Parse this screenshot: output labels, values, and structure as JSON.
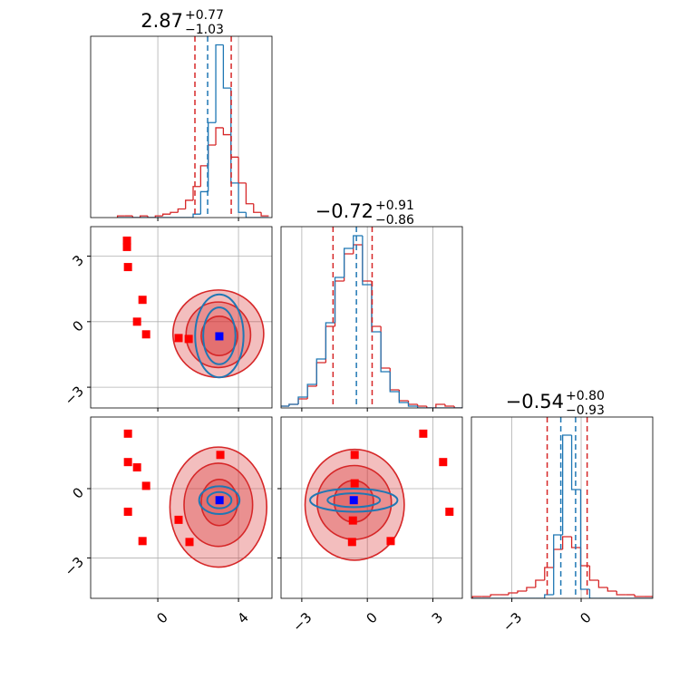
{
  "chart_data": {
    "type": "corner",
    "colors": {
      "red": "#d62728",
      "blue": "#1f77b4",
      "red_marker": "#ff0000",
      "blue_marker": "#0000ff"
    },
    "params": [
      {
        "title": "2.87",
        "plus": "+0.77",
        "minus": "−1.03",
        "lim": [
          -3.33,
          5.66
        ],
        "ticks": [
          0,
          4
        ],
        "quantiles": {
          "red": [
            1.84,
            3.64
          ],
          "blue": [
            2.47
          ]
        },
        "hist_ylim": [
          0,
          1.05
        ],
        "hist": {
          "bins": [
            -2,
            -1.625,
            -1.25,
            -0.875,
            -0.5,
            -0.125,
            0.25,
            0.625,
            1,
            1.375,
            1.75,
            2.125,
            2.5,
            2.875,
            3.25,
            3.625,
            4,
            4.375,
            4.75,
            5.125,
            5.5
          ],
          "red": [
            0.01,
            0.01,
            0,
            0.01,
            0,
            0.01,
            0.02,
            0.03,
            0.05,
            0.1,
            0.18,
            0.3,
            0.42,
            0.52,
            0.48,
            0.35,
            0.2,
            0.08,
            0.03,
            0.01
          ],
          "blue": [
            0,
            0,
            0,
            0,
            0,
            0,
            0,
            0,
            0,
            0,
            0.02,
            0.15,
            0.55,
            1.0,
            0.75,
            0.2,
            0.03,
            0,
            0,
            0
          ]
        },
        "pairs": []
      },
      {
        "title": "−0.72",
        "plus": "+0.91",
        "minus": "−0.86",
        "lim": [
          -3.95,
          4.35
        ],
        "ticks": [
          {
            "value": -3,
            "label": "−3"
          },
          0,
          3
        ],
        "quantiles": {
          "red": [
            -1.57,
            0.22
          ],
          "blue": [
            -0.5
          ]
        },
        "hist_ylim": [
          0,
          1.0
        ],
        "hist": {
          "bins": [
            -4,
            -3.58,
            -3.16,
            -2.74,
            -2.32,
            -1.9,
            -1.48,
            -1.06,
            -0.64,
            -0.22,
            0.2,
            0.62,
            1.04,
            1.46,
            1.88,
            2.3,
            2.72,
            3.14,
            3.56,
            3.98,
            4.4
          ],
          "red": [
            0.01,
            0.02,
            0.05,
            0.12,
            0.25,
            0.45,
            0.7,
            0.85,
            0.9,
            0.7,
            0.45,
            0.22,
            0.1,
            0.04,
            0.02,
            0.01,
            0,
            0.02,
            0.01,
            0
          ],
          "blue": [
            0.01,
            0.02,
            0.06,
            0.13,
            0.27,
            0.47,
            0.72,
            0.88,
            0.95,
            0.68,
            0.42,
            0.2,
            0.09,
            0.03,
            0.01,
            0,
            0,
            0,
            0,
            0
          ]
        },
        "pairs": [
          {
            "red_points": {
              "x": [
                -1.53,
                -1.53,
                -1.48,
                -0.76,
                -1.03,
                -0.58,
                1.03,
                1.53
              ],
              "y": [
                3.71,
                3.42,
                2.5,
                1.0,
                0,
                -0.58,
                -0.75,
                -0.79
              ]
            },
            "blue_point": {
              "x": 3.05,
              "y": -0.67
            },
            "red_contours": [
              {
                "cx": 3.0,
                "cy": -0.55,
                "rx": 2.25,
                "ry": 2.0
              },
              {
                "cx": 3.0,
                "cy": -0.6,
                "rx": 1.6,
                "ry": 1.5
              },
              {
                "cx": 3.05,
                "cy": -0.65,
                "rx": 0.9,
                "ry": 0.9
              }
            ],
            "blue_contours": [
              {
                "cx": 3.05,
                "cy": -0.65,
                "rx": 1.2,
                "ry": 1.9
              },
              {
                "cx": 3.05,
                "cy": -0.65,
                "rx": 0.8,
                "ry": 1.3
              }
            ]
          }
        ]
      },
      {
        "title": "−0.54",
        "plus": "+0.80",
        "minus": "−0.93",
        "lim": [
          -4.75,
          3.1
        ],
        "ticks": [
          {
            "value": -3,
            "label": "−3"
          },
          0
        ],
        "quantiles": {
          "red": [
            -1.47,
            0.26
          ],
          "blue": [
            -0.88,
            -0.24
          ]
        },
        "hist_ylim": [
          0,
          1.0
        ],
        "hist": {
          "bins": [
            -4.7,
            -4.31,
            -3.92,
            -3.53,
            -3.14,
            -2.75,
            -2.36,
            -1.97,
            -1.58,
            -1.19,
            -0.8,
            -0.41,
            -0.02,
            0.37,
            0.76,
            1.15,
            1.54,
            1.93,
            2.32,
            2.71,
            3.1
          ],
          "red": [
            0.01,
            0.01,
            0.02,
            0.02,
            0.03,
            0.04,
            0.06,
            0.1,
            0.17,
            0.27,
            0.34,
            0.28,
            0.18,
            0.1,
            0.06,
            0.04,
            0.02,
            0.02,
            0.01,
            0.01
          ],
          "blue": [
            0,
            0,
            0,
            0,
            0,
            0,
            0,
            0,
            0.02,
            0.35,
            0.9,
            0.6,
            0.05,
            0,
            0,
            0,
            0,
            0,
            0,
            0
          ]
        },
        "pairs": [
          {
            "red_points": {
              "x": [
                -1.48,
                -1.48,
                -1.03,
                -0.58,
                -1.48,
                -0.76,
                1.03,
                1.57,
                3.1
              ],
              "y": [
                2.38,
                1.15,
                0.92,
                0.12,
                -1.0,
                -2.27,
                -1.35,
                -2.31,
                1.46
              ]
            },
            "blue_point": {
              "x": 3.06,
              "y": -0.5
            },
            "red_contours": [
              {
                "cx": 3.0,
                "cy": -0.8,
                "rx": 2.4,
                "ry": 2.6
              },
              {
                "cx": 3.0,
                "cy": -0.7,
                "rx": 1.7,
                "ry": 1.8
              },
              {
                "cx": 3.05,
                "cy": -0.6,
                "rx": 0.9,
                "ry": 1.0
              }
            ],
            "blue_contours": [
              {
                "cx": 3.05,
                "cy": -0.5,
                "rx": 1.0,
                "ry": 0.6
              },
              {
                "cx": 3.05,
                "cy": -0.5,
                "rx": 0.6,
                "ry": 0.35
              }
            ]
          },
          {
            "red_points": {
              "x": [
                -0.58,
                -0.58,
                -0.66,
                -0.7,
                1.07,
                2.56,
                3.47,
                3.76
              ],
              "y": [
                1.46,
                0.23,
                -1.38,
                -2.31,
                -2.27,
                2.38,
                1.15,
                -1.0
              ]
            },
            "blue_point": {
              "x": -0.62,
              "y": -0.5
            },
            "red_contours": [
              {
                "cx": -0.58,
                "cy": -0.7,
                "rx": 2.27,
                "ry": 2.4
              },
              {
                "cx": -0.6,
                "cy": -0.6,
                "rx": 1.7,
                "ry": 1.6
              },
              {
                "cx": -0.62,
                "cy": -0.55,
                "rx": 0.9,
                "ry": 0.9
              }
            ],
            "blue_contours": [
              {
                "cx": -0.62,
                "cy": -0.5,
                "rx": 2.0,
                "ry": 0.5
              },
              {
                "cx": -0.62,
                "cy": -0.5,
                "rx": 1.2,
                "ry": 0.3
              }
            ]
          }
        ]
      }
    ]
  }
}
